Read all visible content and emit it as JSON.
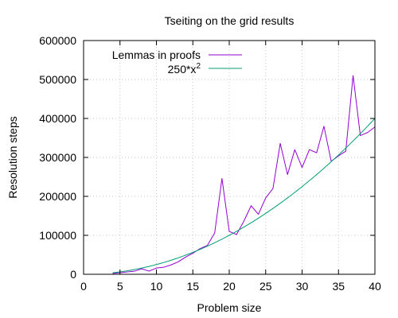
{
  "chart_data": {
    "type": "line",
    "title": "Tseiting on the grid results",
    "xlabel": "Problem size",
    "ylabel": "Resolution steps",
    "xlim": [
      0,
      40
    ],
    "ylim": [
      0,
      600000
    ],
    "x_ticks": [
      0,
      5,
      10,
      15,
      20,
      25,
      30,
      35,
      40
    ],
    "y_ticks": [
      0,
      100000,
      200000,
      300000,
      400000,
      500000,
      600000
    ],
    "x_tick_labels": [
      "0",
      "5",
      "10",
      "15",
      "20",
      "25",
      "30",
      "35",
      "40"
    ],
    "y_tick_labels": [
      "0",
      "100000",
      "200000",
      "300000",
      "400000",
      "500000",
      "600000"
    ],
    "grid": true,
    "legend_position": "top-left",
    "series": [
      {
        "name": "Lemmas in proofs",
        "color": "#9400d3",
        "style": "line",
        "x": [
          4,
          5,
          6,
          7,
          8,
          9,
          10,
          11,
          12,
          13,
          14,
          15,
          16,
          17,
          18,
          19,
          20,
          21,
          22,
          23,
          24,
          25,
          26,
          27,
          28,
          29,
          30,
          31,
          32,
          33,
          34,
          35,
          36,
          37,
          38,
          39,
          40
        ],
        "y": [
          2000,
          4000,
          6000,
          8000,
          14000,
          8000,
          16000,
          18000,
          24000,
          32000,
          44000,
          54000,
          66000,
          74000,
          106000,
          246000,
          110000,
          102000,
          136000,
          176000,
          154000,
          196000,
          220000,
          336000,
          256000,
          320000,
          274000,
          320000,
          312000,
          380000,
          290000,
          304000,
          316000,
          510000,
          356000,
          364000,
          378000
        ]
      },
      {
        "name": "250*x",
        "name_superscript": "2",
        "color": "#009e73",
        "style": "function",
        "coefficient": 250,
        "exponent": 2,
        "x_range": [
          4,
          40
        ]
      }
    ]
  }
}
